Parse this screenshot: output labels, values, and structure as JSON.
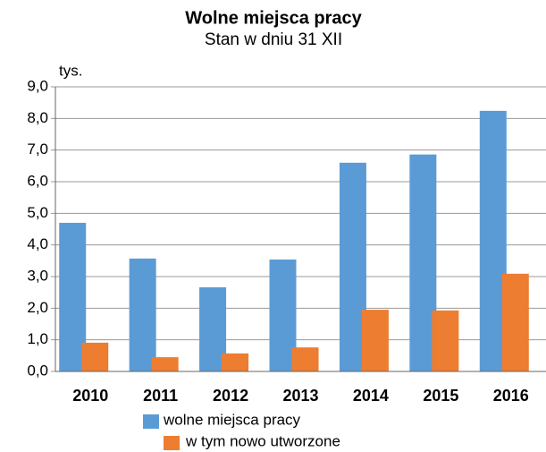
{
  "chart_data": {
    "type": "bar",
    "title": "Wolne miejsca pracy",
    "subtitle": "Stan w dniu 31 XII",
    "y_label": "tys.",
    "categories": [
      "2010",
      "2011",
      "2012",
      "2013",
      "2014",
      "2015",
      "2016"
    ],
    "series": [
      {
        "name": "wolne miejsca pracy",
        "color": "#5b9bd5",
        "values": [
          4.7,
          3.57,
          2.66,
          3.54,
          6.6,
          6.86,
          8.24
        ]
      },
      {
        "name": "w tym nowo utworzone",
        "color": "#ed7d31",
        "values": [
          0.91,
          0.45,
          0.57,
          0.76,
          1.95,
          1.93,
          3.09
        ]
      }
    ],
    "ylim": [
      0,
      9
    ],
    "yticks": [
      {
        "value": 0,
        "label": "0,0"
      },
      {
        "value": 1,
        "label": "1,0"
      },
      {
        "value": 2,
        "label": "2,0"
      },
      {
        "value": 3,
        "label": "3,0"
      },
      {
        "value": 4,
        "label": "4,0"
      },
      {
        "value": 5,
        "label": "5,0"
      },
      {
        "value": 6,
        "label": "6,0"
      },
      {
        "value": 7,
        "label": "7,0"
      },
      {
        "value": 8,
        "label": "8,0"
      },
      {
        "value": 9,
        "label": "9,0"
      }
    ],
    "grid": true
  }
}
